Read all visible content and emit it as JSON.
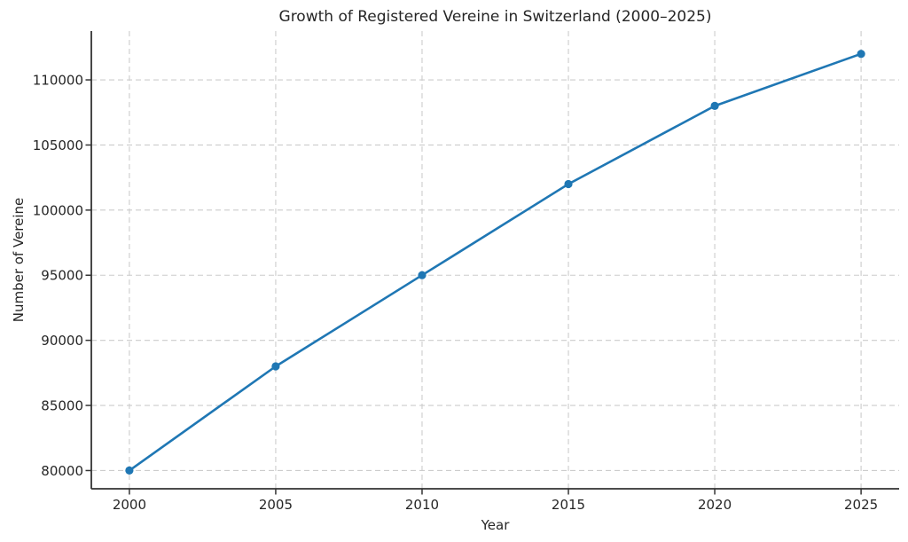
{
  "figure": {
    "background": "#ffffff"
  },
  "chart_data": {
    "type": "line",
    "title": "Growth of Registered Vereine in Switzerland (2000–2025)",
    "xlabel": "Year",
    "ylabel": "Number of Vereine",
    "x": [
      2000,
      2005,
      2010,
      2015,
      2020,
      2025
    ],
    "series": [
      {
        "name": "Registered Vereine",
        "marker": "circle",
        "color": "#1f77b4",
        "values": [
          80000,
          88000,
          95000,
          102000,
          108000,
          112000
        ]
      }
    ],
    "xticks": [
      2000,
      2005,
      2010,
      2015,
      2020,
      2025
    ],
    "yticks": [
      80000,
      85000,
      90000,
      95000,
      100000,
      105000,
      110000
    ],
    "xlim": [
      1998.7,
      2026.3
    ],
    "ylim": [
      78600,
      113750
    ],
    "grid": true,
    "grid_linestyle": "dashed",
    "legend_position": "none",
    "spines": [
      "left",
      "bottom"
    ],
    "colors": {
      "line": "#1f77b4",
      "marker": "#1f77b4",
      "grid": "#cccccc",
      "spine": "#333333",
      "tick": "#333333",
      "text": "#262626",
      "background": "#ffffff"
    }
  }
}
